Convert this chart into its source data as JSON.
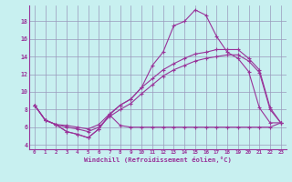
{
  "bg_color": "#c8f0f0",
  "line_color": "#993399",
  "grid_color": "#9999bb",
  "xlabel": "Windchill (Refroidissement éolien,°C)",
  "xlim": [
    -0.5,
    23.5
  ],
  "ylim": [
    3.5,
    19.8
  ],
  "yticks": [
    4,
    6,
    8,
    10,
    12,
    14,
    16,
    18
  ],
  "xticks": [
    0,
    1,
    2,
    3,
    4,
    5,
    6,
    7,
    8,
    9,
    10,
    11,
    12,
    13,
    14,
    15,
    16,
    17,
    18,
    19,
    20,
    21,
    22,
    23
  ],
  "line1_x": [
    0,
    1,
    2,
    3,
    4,
    5,
    6,
    7,
    8,
    9,
    10,
    11,
    12,
    13,
    14,
    15,
    16,
    17,
    18,
    19,
    20,
    21,
    22,
    23
  ],
  "line1_y": [
    8.5,
    6.8,
    6.3,
    5.5,
    5.2,
    4.8,
    5.8,
    7.4,
    6.2,
    6.0,
    6.0,
    6.0,
    6.0,
    6.0,
    6.0,
    6.0,
    6.0,
    6.0,
    6.0,
    6.0,
    6.0,
    6.0,
    6.0,
    6.5
  ],
  "line2_x": [
    0,
    1,
    2,
    3,
    4,
    5,
    6,
    7,
    8,
    9,
    10,
    11,
    12,
    13,
    14,
    15,
    16,
    17,
    18,
    19,
    20,
    21,
    22,
    23
  ],
  "line2_y": [
    8.5,
    6.8,
    6.3,
    5.5,
    5.2,
    4.8,
    5.8,
    7.4,
    8.5,
    9.2,
    10.5,
    13.0,
    14.5,
    17.5,
    18.0,
    19.3,
    18.7,
    16.3,
    14.5,
    13.8,
    12.3,
    8.2,
    6.5,
    6.5
  ],
  "line3_x": [
    0,
    1,
    2,
    3,
    4,
    5,
    6,
    7,
    8,
    9,
    10,
    11,
    12,
    13,
    14,
    15,
    16,
    17,
    18,
    19,
    20,
    21,
    22,
    23
  ],
  "line3_y": [
    8.5,
    6.8,
    6.3,
    6.0,
    5.8,
    5.5,
    6.0,
    7.2,
    8.0,
    8.7,
    9.8,
    10.8,
    11.8,
    12.5,
    13.0,
    13.5,
    13.8,
    14.0,
    14.2,
    14.2,
    13.5,
    12.2,
    8.0,
    6.5
  ],
  "line4_x": [
    0,
    1,
    2,
    3,
    4,
    5,
    6,
    7,
    8,
    9,
    10,
    11,
    12,
    13,
    14,
    15,
    16,
    17,
    18,
    19,
    20,
    21,
    22,
    23
  ],
  "line4_y": [
    8.5,
    6.8,
    6.3,
    6.2,
    6.0,
    5.8,
    6.3,
    7.5,
    8.5,
    9.2,
    10.5,
    11.5,
    12.5,
    13.2,
    13.8,
    14.3,
    14.5,
    14.8,
    14.8,
    14.8,
    13.8,
    12.5,
    8.2,
    6.5
  ]
}
